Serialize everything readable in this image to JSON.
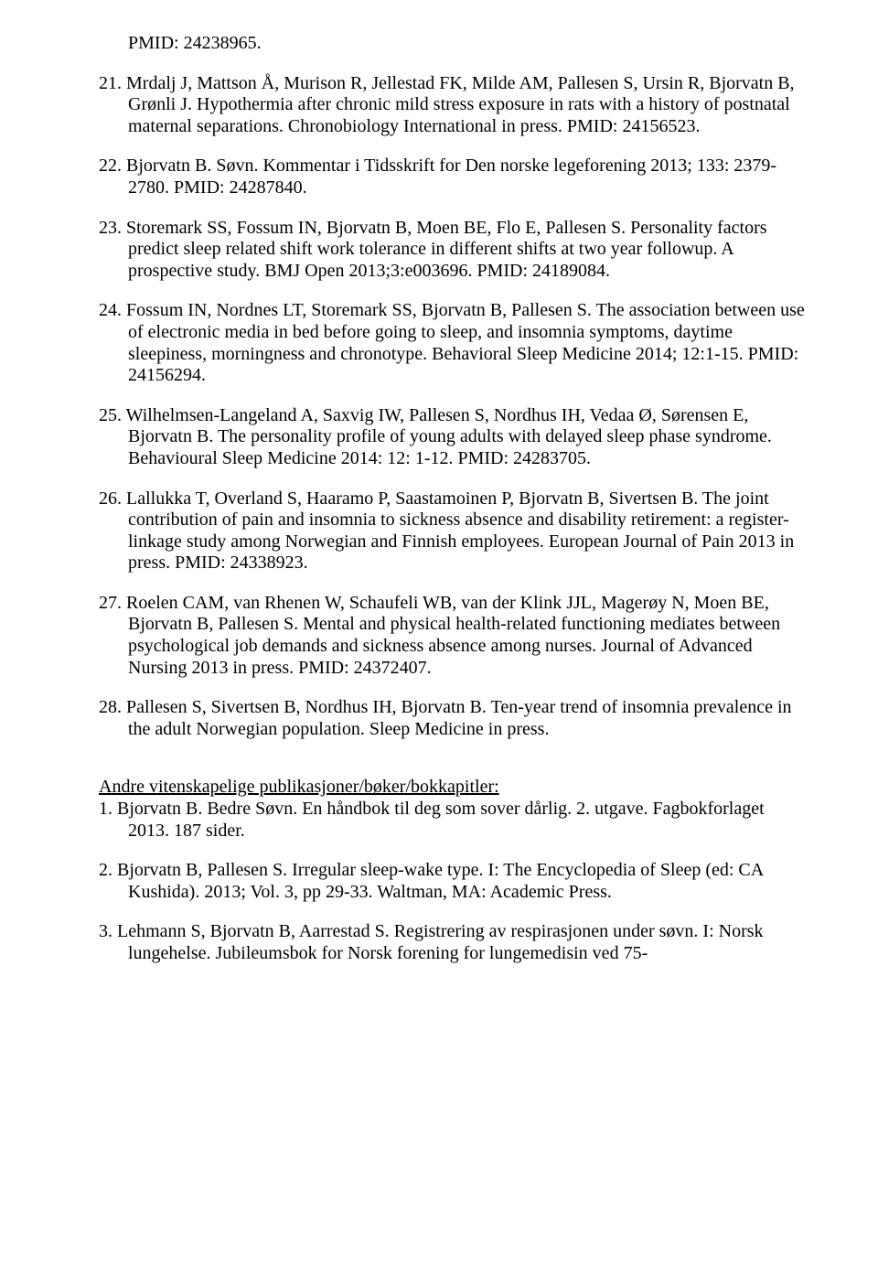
{
  "top": {
    "pmid_line": "PMID: 24238965."
  },
  "entries": {
    "e21": "21. Mrdalj J, Mattson Å, Murison R, Jellestad FK, Milde AM, Pallesen S, Ursin R, Bjorvatn B, Grønli J. Hypothermia after chronic mild stress exposure in rats with a history of postnatal maternal separations. Chronobiology International in press. PMID: 24156523.",
    "e22": "22. Bjorvatn B. Søvn. Kommentar i Tidsskrift for Den norske legeforening 2013; 133: 2379-2780. PMID: 24287840.",
    "e23": "23. Storemark SS, Fossum IN, Bjorvatn B, Moen BE, Flo E, Pallesen S. Personality factors predict sleep related shift work tolerance in different shifts at two year followup. A prospective study. BMJ Open 2013;3:e003696. PMID: 24189084.",
    "e24": "24. Fossum IN, Nordnes LT, Storemark SS, Bjorvatn B, Pallesen S. The association between use of electronic media in bed before going to sleep, and insomnia symptoms, daytime sleepiness, morningness and chronotype. Behavioral Sleep Medicine 2014; 12:1-15. PMID: 24156294.",
    "e25": "25. Wilhelmsen-Langeland A, Saxvig IW, Pallesen S, Nordhus IH, Vedaa Ø, Sørensen E, Bjorvatn B. The personality profile of young adults with delayed sleep phase syndrome. Behavioural Sleep Medicine 2014: 12: 1-12. PMID: 24283705.",
    "e26": "26. Lallukka T, Overland S, Haaramo P, Saastamoinen P, Bjorvatn B, Sivertsen B. The joint contribution of pain and insomnia to sickness absence and disability retirement: a register-linkage study among Norwegian and Finnish employees. European Journal of Pain 2013 in press. PMID: 24338923.",
    "e27": "27. Roelen CAM, van Rhenen W, Schaufeli WB, van der Klink JJL, Magerøy N, Moen BE, Bjorvatn B, Pallesen S. Mental and physical health-related functioning mediates between psychological job demands and sickness absence among nurses. Journal of Advanced Nursing 2013 in press. PMID: 24372407.",
    "e28": "28. Pallesen S, Sivertsen B, Nordhus IH, Bjorvatn B. Ten-year trend of insomnia prevalence in the adult Norwegian population. Sleep Medicine in press."
  },
  "section_title": "Andre vitenskapelige publikasjoner/bøker/bokkapitler:",
  "subs": {
    "s1": "1.  Bjorvatn B. Bedre Søvn. En håndbok til deg som sover dårlig. 2. utgave. Fagbokforlaget 2013. 187 sider.",
    "s2": "2.  Bjorvatn B, Pallesen S. Irregular sleep-wake type. I: The Encyclopedia of Sleep (ed: CA Kushida). 2013; Vol. 3, pp 29-33. Waltman, MA: Academic Press.",
    "s3": "3.  Lehmann S, Bjorvatn B, Aarrestad S. Registrering av respirasjonen under søvn. I: Norsk lungehelse. Jubileumsbok for Norsk forening for lungemedisin ved 75-"
  }
}
